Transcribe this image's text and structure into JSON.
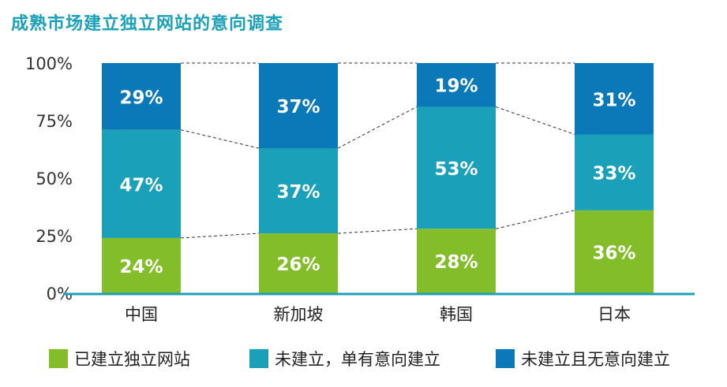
{
  "title": "成熟市场建立独立网站的意向调查",
  "colors": {
    "green": "#84bd2a",
    "teal": "#1aa0b8",
    "blue": "#0b79b8",
    "axis": "#1aa0b8",
    "dashed": "#333333"
  },
  "chart_data": {
    "type": "bar",
    "stacked": true,
    "categories": [
      "中国",
      "新加坡",
      "韩国",
      "日本"
    ],
    "series": [
      {
        "name": "已建立独立网站",
        "values": [
          24,
          26,
          28,
          36
        ],
        "labels": [
          "24%",
          "26%",
          "28%",
          "36%"
        ],
        "color": "#84bd2a"
      },
      {
        "name": "未建立，单有意向建立",
        "values": [
          47,
          37,
          53,
          33
        ],
        "labels": [
          "47%",
          "37%",
          "53%",
          "33%"
        ],
        "color": "#1aa0b8"
      },
      {
        "name": "未建立且无意向建立",
        "values": [
          29,
          37,
          19,
          31
        ],
        "labels": [
          "29%",
          "37%",
          "19%",
          "31%"
        ],
        "color": "#0b79b8"
      }
    ],
    "y_ticks": [
      "0%",
      "25%",
      "50%",
      "75%",
      "100%"
    ],
    "ylim": [
      0,
      100
    ],
    "legend": "bottom"
  }
}
